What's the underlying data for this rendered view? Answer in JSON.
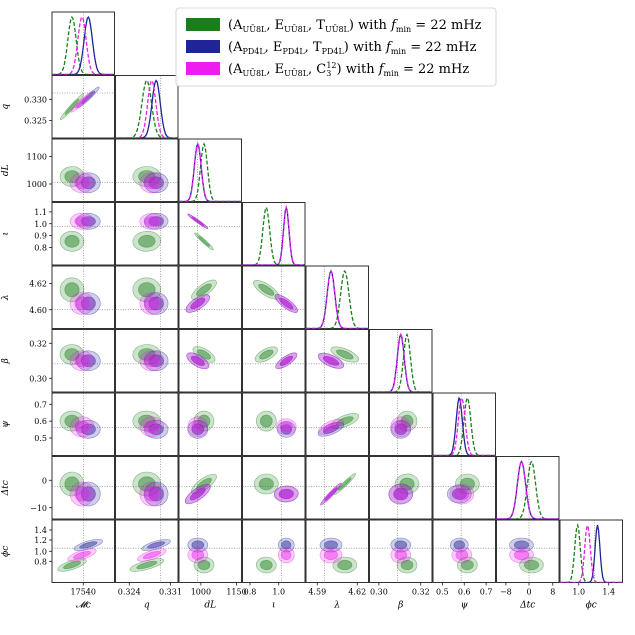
{
  "chart_data": {
    "type": "corner",
    "parameters": [
      {
        "key": "Mc",
        "label": "𝓜c",
        "ticks": [
          {
            "v": 0.5,
            "t": "17540"
          }
        ]
      },
      {
        "key": "q",
        "label": "q",
        "ticks": [
          {
            "v": 0.22,
            "t": "0.324"
          },
          {
            "v": 0.88,
            "t": "0.331"
          }
        ],
        "yticks": [
          {
            "v": 0.62,
            "t": "0.330"
          },
          {
            "v": 0.28,
            "t": "0.325"
          }
        ]
      },
      {
        "key": "dL",
        "label": "dL",
        "ticks": [
          {
            "v": 0.35,
            "t": "1000"
          },
          {
            "v": 0.92,
            "t": "1150"
          }
        ],
        "yticks": [
          {
            "v": 0.72,
            "t": "1100"
          },
          {
            "v": 0.28,
            "t": "1000"
          }
        ]
      },
      {
        "key": "iota",
        "label": "ι",
        "ticks": [
          {
            "v": 0.12,
            "t": "0.8"
          },
          {
            "v": 0.58,
            "t": "1.0"
          }
        ],
        "yticks": [
          {
            "v": 0.85,
            "t": "1.1"
          },
          {
            "v": 0.66,
            "t": "1.0"
          },
          {
            "v": 0.47,
            "t": "0.9"
          },
          {
            "v": 0.28,
            "t": "0.8"
          }
        ]
      },
      {
        "key": "lambda",
        "label": "λ",
        "ticks": [
          {
            "v": 0.18,
            "t": "4.59"
          },
          {
            "v": 0.82,
            "t": "4.62"
          }
        ],
        "yticks": [
          {
            "v": 0.72,
            "t": "4.62"
          },
          {
            "v": 0.3,
            "t": "4.60"
          }
        ]
      },
      {
        "key": "beta",
        "label": "β",
        "ticks": [
          {
            "v": 0.15,
            "t": "0.30"
          },
          {
            "v": 0.82,
            "t": "0.32"
          }
        ],
        "yticks": [
          {
            "v": 0.78,
            "t": "0.32"
          },
          {
            "v": 0.22,
            "t": "0.30"
          }
        ]
      },
      {
        "key": "psi",
        "label": "ψ",
        "ticks": [
          {
            "v": 0.15,
            "t": "0.5"
          },
          {
            "v": 0.5,
            "t": "0.6"
          },
          {
            "v": 0.85,
            "t": "0.7"
          }
        ],
        "yticks": [
          {
            "v": 0.82,
            "t": "0.7"
          },
          {
            "v": 0.55,
            "t": "0.6"
          },
          {
            "v": 0.28,
            "t": "0.5"
          }
        ]
      },
      {
        "key": "dtc",
        "label": "Δtc",
        "ticks": [
          {
            "v": 0.15,
            "t": "−8"
          },
          {
            "v": 0.52,
            "t": "0"
          },
          {
            "v": 0.9,
            "t": "8"
          }
        ],
        "yticks": [
          {
            "v": 0.62,
            "t": "0"
          },
          {
            "v": 0.18,
            "t": "−10"
          }
        ]
      },
      {
        "key": "phic",
        "label": "ϕc",
        "ticks": [
          {
            "v": 0.3,
            "t": "1.0"
          },
          {
            "v": 0.78,
            "t": "1.4"
          }
        ],
        "yticks": [
          {
            "v": 0.84,
            "t": "1.4"
          },
          {
            "v": 0.68,
            "t": "1.2"
          },
          {
            "v": 0.5,
            "t": "1.0"
          },
          {
            "v": 0.34,
            "t": "0.8"
          }
        ]
      }
    ],
    "truth": [
      0.5,
      0.72,
      0.3,
      0.62,
      0.3,
      0.45,
      0.45,
      0.52,
      0.55
    ],
    "series": [
      {
        "name": "(AUŪ8L, EUŪ8L, TUŪ8L) with fmin = 22 mHz",
        "color": "#1a7f1a",
        "dashed": true,
        "peaks": [
          0.32,
          0.5,
          0.4,
          0.38,
          0.62,
          0.6,
          0.55,
          0.56,
          0.28
        ],
        "widths": [
          0.12,
          0.14,
          0.1,
          0.1,
          0.12,
          0.1,
          0.1,
          0.12,
          0.08
        ]
      },
      {
        "name": "(APD4L, EPD4L, TPD4L) with fmin = 22 mHz",
        "color": "#1f2496",
        "dashed": false,
        "peaks": [
          0.58,
          0.65,
          0.3,
          0.7,
          0.4,
          0.5,
          0.42,
          0.4,
          0.6
        ],
        "widths": [
          0.12,
          0.12,
          0.1,
          0.08,
          0.11,
          0.1,
          0.09,
          0.12,
          0.07
        ]
      },
      {
        "name": "(AUŪ8L, EUŪ8L, C3¹²) with fmin = 22 mHz",
        "color": "#ee1cee",
        "dashed": true,
        "peaks": [
          0.48,
          0.58,
          0.3,
          0.7,
          0.4,
          0.5,
          0.46,
          0.4,
          0.44
        ],
        "widths": [
          0.12,
          0.12,
          0.1,
          0.08,
          0.11,
          0.1,
          0.1,
          0.12,
          0.08
        ]
      }
    ],
    "legend_position": "top-right",
    "grid": false
  },
  "legend": {
    "entries": [
      {
        "main": "(A",
        "s1": "UŪ8L",
        "m2": ", E",
        "s2": "UŪ8L",
        "m3": ", T",
        "s3": "UŪ8L",
        "tail": ") with ",
        "f": "f",
        "fsub": "min",
        "eq": " = 22 mHz"
      },
      {
        "main": "(A",
        "s1": "PD4L",
        "m2": ", E",
        "s2": "PD4L",
        "m3": ", T",
        "s3": "PD4L",
        "tail": ") with ",
        "f": "f",
        "fsub": "min",
        "eq": " = 22 mHz"
      },
      {
        "main": "(A",
        "s1": "UŪ8L",
        "m2": ", E",
        "s2": "UŪ8L",
        "m3": ", C",
        "s3": "3",
        "sup": "12",
        "tail": ") with ",
        "f": "f",
        "fsub": "min",
        "eq": " = 22 mHz"
      }
    ]
  }
}
